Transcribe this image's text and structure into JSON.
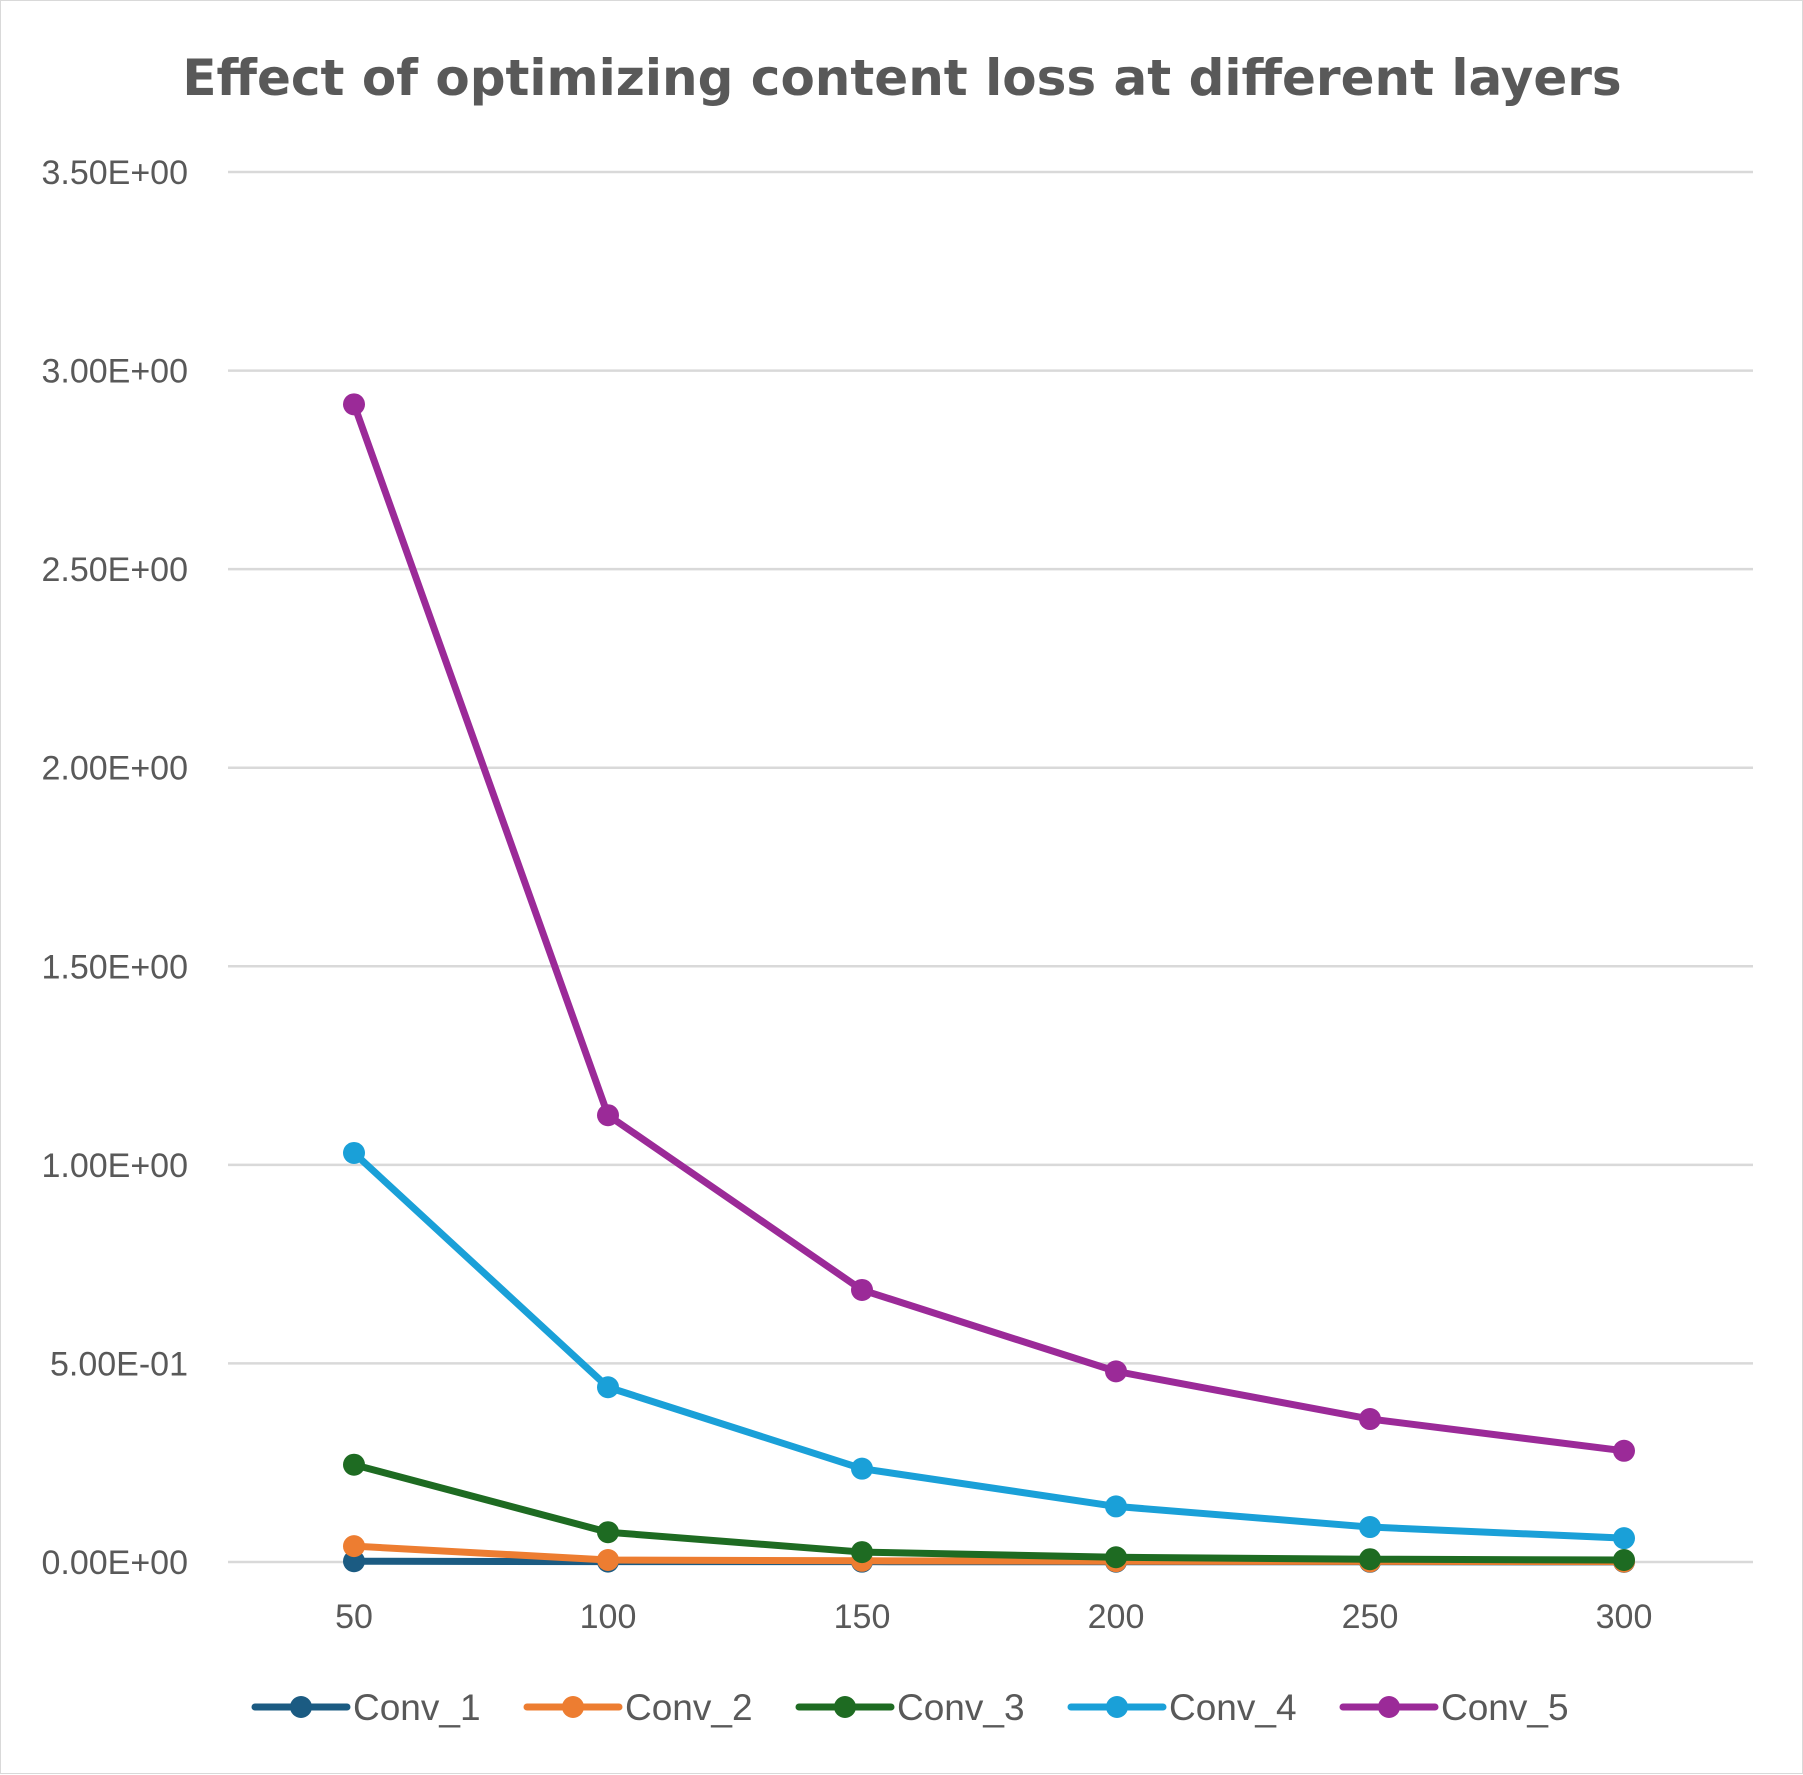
{
  "chart_data": {
    "type": "line",
    "title": "Effect of optimizing content loss at different layers",
    "xlabel": "",
    "ylabel": "",
    "categories": [
      "50",
      "100",
      "150",
      "200",
      "250",
      "300"
    ],
    "ylim": [
      0,
      3.5
    ],
    "yticks": [
      "0.00E+00",
      "5.00E-01",
      "1.00E+00",
      "1.50E+00",
      "2.00E+00",
      "2.50E+00",
      "3.00E+00",
      "3.50E+00"
    ],
    "grid": true,
    "legend_position": "bottom",
    "series": [
      {
        "name": "Conv_1",
        "color": "#1b5b82",
        "values": [
          0.002,
          0.001,
          0.0008,
          0.0006,
          0.0005,
          0.0004
        ]
      },
      {
        "name": "Conv_2",
        "color": "#ed7d31",
        "values": [
          0.04,
          0.005,
          0.003,
          0.002,
          0.0015,
          0.001
        ]
      },
      {
        "name": "Conv_3",
        "color": "#1e6b22",
        "values": [
          0.245,
          0.075,
          0.025,
          0.012,
          0.007,
          0.005
        ]
      },
      {
        "name": "Conv_4",
        "color": "#1aa0d8",
        "values": [
          1.03,
          0.44,
          0.235,
          0.14,
          0.088,
          0.06
        ]
      },
      {
        "name": "Conv_5",
        "color": "#9b2a98",
        "values": [
          2.915,
          1.125,
          0.685,
          0.48,
          0.36,
          0.28
        ]
      }
    ]
  }
}
